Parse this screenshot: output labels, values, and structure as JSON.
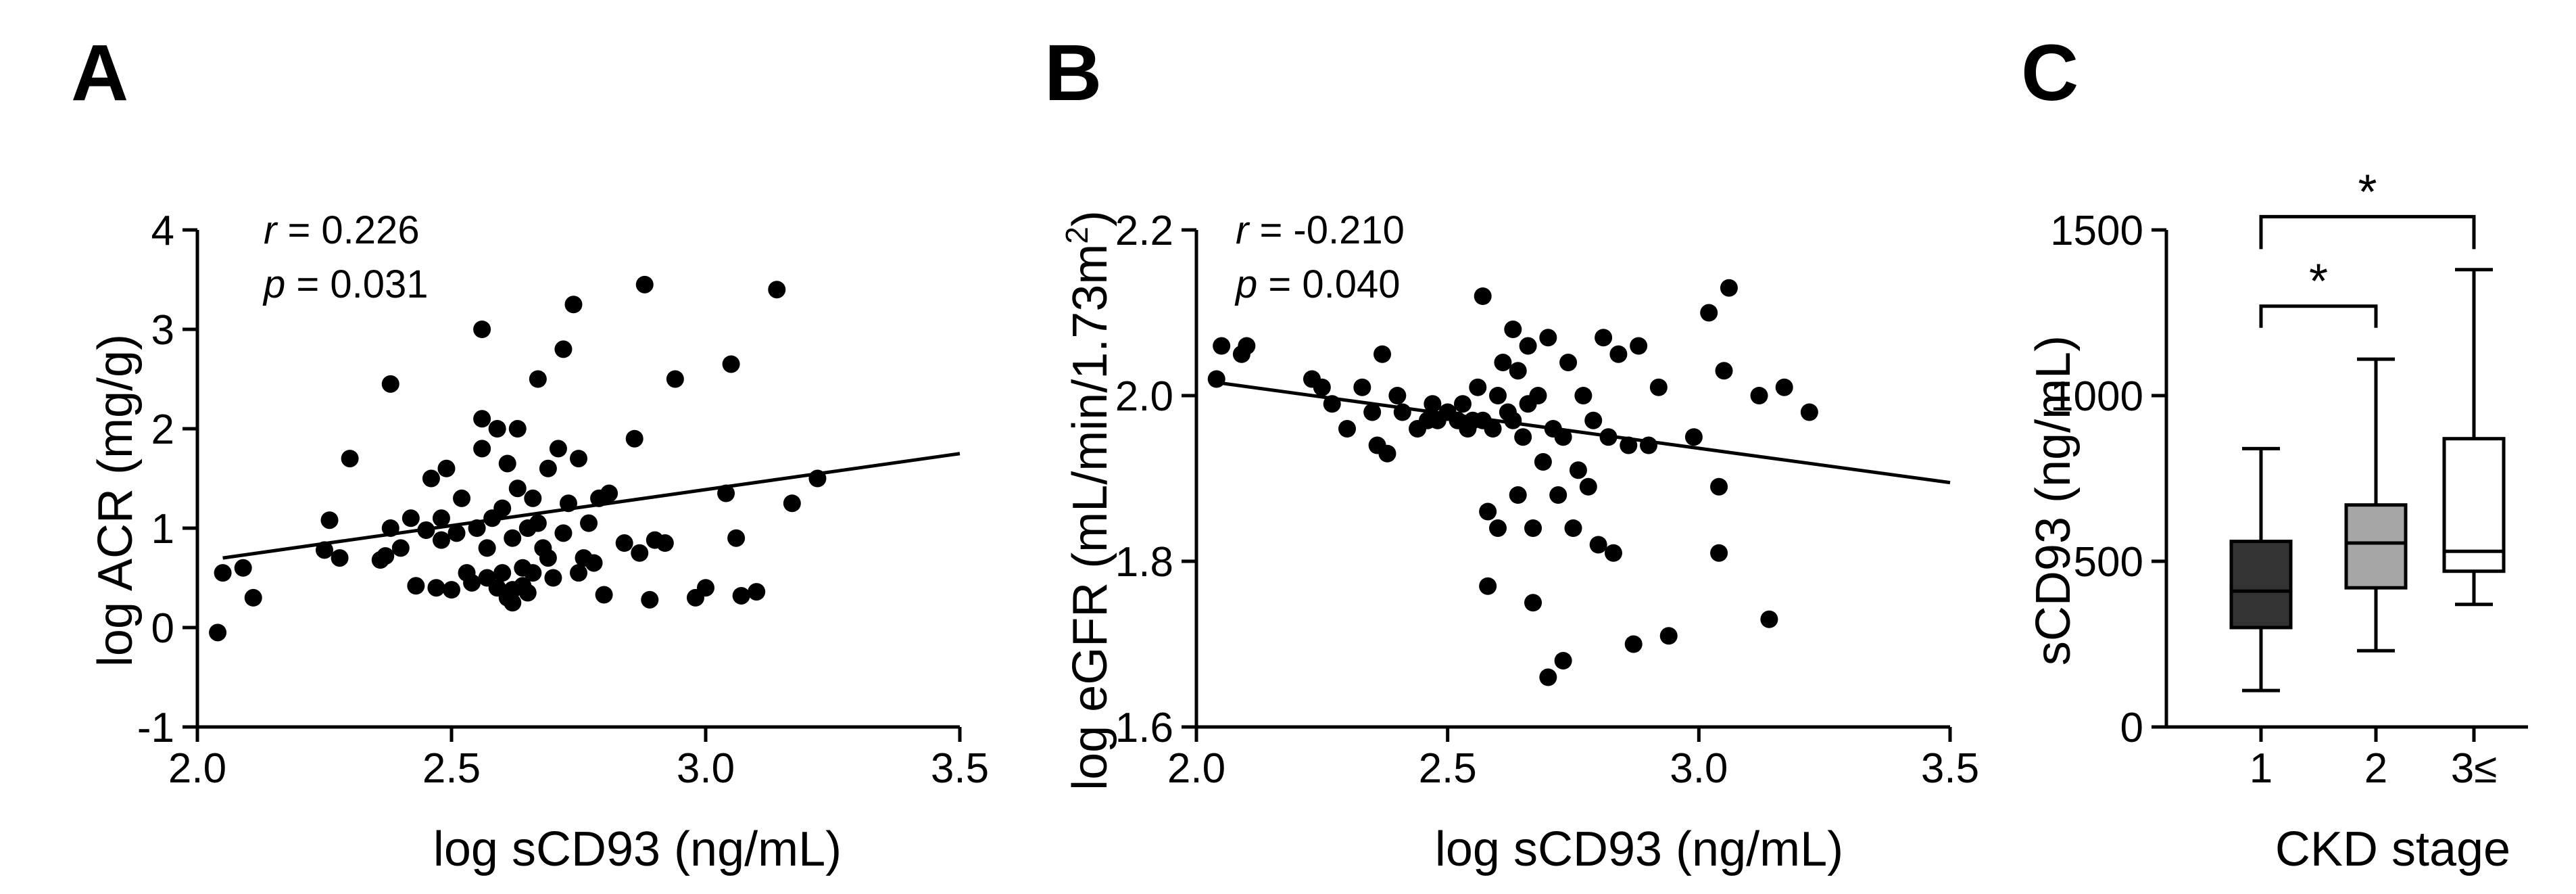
{
  "chart_data": [
    {
      "panel": "A",
      "type": "scatter",
      "xlabel": "log sCD93 (ng/mL)",
      "ylabel": "log ACR (mg/g)",
      "xlim": [
        2.0,
        3.5
      ],
      "ylim": [
        -1,
        4
      ],
      "xticks": [
        2.0,
        2.5,
        3.0,
        3.5
      ],
      "xtick_labels": [
        "2.0",
        "2.5",
        "3.0",
        "3.5"
      ],
      "yticks": [
        -1,
        0,
        1,
        2,
        3,
        4
      ],
      "ytick_labels": [
        "-1",
        "0",
        "1",
        "2",
        "3",
        "4"
      ],
      "stats": {
        "r_symbol": "r",
        "r_value": " = 0.226",
        "p_symbol": "p",
        "p_value": " = 0.031"
      },
      "fit_line": {
        "x": [
          2.05,
          3.5
        ],
        "y": [
          0.7,
          1.75
        ]
      },
      "points": [
        [
          2.04,
          -0.05
        ],
        [
          2.05,
          0.55
        ],
        [
          2.09,
          0.6
        ],
        [
          2.11,
          0.3
        ],
        [
          2.25,
          0.78
        ],
        [
          2.26,
          1.08
        ],
        [
          2.28,
          0.7
        ],
        [
          2.3,
          1.7
        ],
        [
          2.36,
          0.68
        ],
        [
          2.37,
          0.72
        ],
        [
          2.38,
          1.0
        ],
        [
          2.38,
          2.45
        ],
        [
          2.4,
          0.8
        ],
        [
          2.42,
          1.1
        ],
        [
          2.43,
          0.42
        ],
        [
          2.45,
          0.98
        ],
        [
          2.46,
          1.5
        ],
        [
          2.47,
          0.4
        ],
        [
          2.48,
          0.88
        ],
        [
          2.48,
          1.1
        ],
        [
          2.49,
          1.6
        ],
        [
          2.5,
          0.38
        ],
        [
          2.51,
          0.95
        ],
        [
          2.52,
          1.3
        ],
        [
          2.53,
          0.55
        ],
        [
          2.54,
          0.45
        ],
        [
          2.55,
          1.0
        ],
        [
          2.56,
          2.1
        ],
        [
          2.56,
          1.8
        ],
        [
          2.56,
          3.0
        ],
        [
          2.57,
          0.5
        ],
        [
          2.57,
          0.8
        ],
        [
          2.58,
          1.1
        ],
        [
          2.59,
          0.4
        ],
        [
          2.59,
          2.0
        ],
        [
          2.6,
          0.55
        ],
        [
          2.6,
          1.2
        ],
        [
          2.61,
          0.3
        ],
        [
          2.61,
          1.65
        ],
        [
          2.62,
          0.38
        ],
        [
          2.62,
          0.25
        ],
        [
          2.62,
          0.9
        ],
        [
          2.63,
          2.0
        ],
        [
          2.63,
          1.4
        ],
        [
          2.64,
          0.6
        ],
        [
          2.64,
          0.42
        ],
        [
          2.65,
          1.0
        ],
        [
          2.65,
          0.35
        ],
        [
          2.66,
          1.3
        ],
        [
          2.66,
          0.55
        ],
        [
          2.67,
          1.05
        ],
        [
          2.67,
          2.5
        ],
        [
          2.68,
          0.8
        ],
        [
          2.69,
          1.6
        ],
        [
          2.69,
          0.7
        ],
        [
          2.7,
          0.5
        ],
        [
          2.71,
          1.8
        ],
        [
          2.72,
          2.8
        ],
        [
          2.72,
          0.95
        ],
        [
          2.73,
          1.25
        ],
        [
          2.74,
          3.25
        ],
        [
          2.75,
          1.7
        ],
        [
          2.75,
          0.55
        ],
        [
          2.76,
          0.7
        ],
        [
          2.77,
          1.05
        ],
        [
          2.78,
          0.65
        ],
        [
          2.79,
          1.3
        ],
        [
          2.8,
          0.33
        ],
        [
          2.81,
          1.35
        ],
        [
          2.84,
          0.85
        ],
        [
          2.86,
          1.9
        ],
        [
          2.87,
          0.75
        ],
        [
          2.88,
          3.45
        ],
        [
          2.89,
          0.28
        ],
        [
          2.9,
          0.88
        ],
        [
          2.92,
          0.85
        ],
        [
          2.94,
          2.5
        ],
        [
          2.98,
          0.3
        ],
        [
          3.0,
          0.4
        ],
        [
          3.04,
          1.35
        ],
        [
          3.05,
          2.65
        ],
        [
          3.06,
          0.9
        ],
        [
          3.07,
          0.32
        ],
        [
          3.1,
          0.36
        ],
        [
          3.14,
          3.4
        ],
        [
          3.17,
          1.25
        ],
        [
          3.22,
          1.5
        ]
      ]
    },
    {
      "panel": "B",
      "type": "scatter",
      "xlabel": "log sCD93 (ng/mL)",
      "ylabel_parts": [
        "log eGFR (mL/min/1.73m",
        "2",
        ")"
      ],
      "xlim": [
        2.0,
        3.5
      ],
      "ylim": [
        1.6,
        2.2
      ],
      "xticks": [
        2.0,
        2.5,
        3.0,
        3.5
      ],
      "xtick_labels": [
        "2.0",
        "2.5",
        "3.0",
        "3.5"
      ],
      "yticks": [
        1.6,
        1.8,
        2.0,
        2.2
      ],
      "ytick_labels": [
        "1.6",
        "1.8",
        "2.0",
        "2.2"
      ],
      "stats": {
        "r_symbol": "r",
        "r_value": " = -0.210",
        "p_symbol": "p",
        "p_value": " = 0.040"
      },
      "fit_line": {
        "x": [
          2.05,
          3.5
        ],
        "y": [
          2.015,
          1.895
        ]
      },
      "points": [
        [
          2.04,
          2.02
        ],
        [
          2.05,
          2.06
        ],
        [
          2.09,
          2.05
        ],
        [
          2.1,
          2.06
        ],
        [
          2.23,
          2.02
        ],
        [
          2.25,
          2.01
        ],
        [
          2.27,
          1.99
        ],
        [
          2.3,
          1.96
        ],
        [
          2.33,
          2.01
        ],
        [
          2.35,
          1.98
        ],
        [
          2.36,
          1.94
        ],
        [
          2.37,
          2.05
        ],
        [
          2.38,
          1.93
        ],
        [
          2.4,
          2.0
        ],
        [
          2.41,
          1.98
        ],
        [
          2.44,
          1.96
        ],
        [
          2.46,
          1.97
        ],
        [
          2.47,
          1.99
        ],
        [
          2.48,
          1.97
        ],
        [
          2.5,
          1.98
        ],
        [
          2.52,
          1.97
        ],
        [
          2.53,
          1.99
        ],
        [
          2.54,
          1.96
        ],
        [
          2.55,
          1.97
        ],
        [
          2.56,
          2.01
        ],
        [
          2.57,
          2.12
        ],
        [
          2.57,
          1.97
        ],
        [
          2.58,
          1.86
        ],
        [
          2.58,
          1.77
        ],
        [
          2.59,
          1.96
        ],
        [
          2.6,
          1.84
        ],
        [
          2.6,
          2.0
        ],
        [
          2.61,
          2.04
        ],
        [
          2.62,
          1.98
        ],
        [
          2.63,
          2.08
        ],
        [
          2.63,
          1.97
        ],
        [
          2.64,
          1.88
        ],
        [
          2.64,
          2.03
        ],
        [
          2.65,
          1.95
        ],
        [
          2.66,
          1.99
        ],
        [
          2.66,
          2.06
        ],
        [
          2.67,
          1.84
        ],
        [
          2.67,
          1.75
        ],
        [
          2.68,
          2.0
        ],
        [
          2.69,
          1.92
        ],
        [
          2.7,
          1.66
        ],
        [
          2.7,
          2.07
        ],
        [
          2.71,
          1.96
        ],
        [
          2.72,
          1.88
        ],
        [
          2.73,
          1.68
        ],
        [
          2.73,
          1.95
        ],
        [
          2.74,
          2.04
        ],
        [
          2.75,
          1.84
        ],
        [
          2.76,
          1.91
        ],
        [
          2.77,
          2.0
        ],
        [
          2.78,
          1.89
        ],
        [
          2.79,
          1.97
        ],
        [
          2.8,
          1.82
        ],
        [
          2.81,
          2.07
        ],
        [
          2.82,
          1.95
        ],
        [
          2.83,
          1.81
        ],
        [
          2.84,
          2.05
        ],
        [
          2.86,
          1.94
        ],
        [
          2.87,
          1.7
        ],
        [
          2.88,
          2.06
        ],
        [
          2.9,
          1.94
        ],
        [
          2.92,
          2.01
        ],
        [
          2.94,
          1.71
        ],
        [
          2.99,
          1.95
        ],
        [
          3.02,
          2.1
        ],
        [
          3.04,
          1.89
        ],
        [
          3.05,
          2.03
        ],
        [
          3.06,
          2.13
        ],
        [
          3.04,
          1.81
        ],
        [
          3.12,
          2.0
        ],
        [
          3.14,
          1.73
        ],
        [
          3.17,
          2.01
        ],
        [
          3.22,
          1.98
        ]
      ]
    },
    {
      "panel": "C",
      "type": "box",
      "xlabel": "CKD stage",
      "ylabel": "sCD93 (ng/mL)",
      "ylim": [
        0,
        1500
      ],
      "yticks": [
        0,
        500,
        1000,
        1500
      ],
      "ytick_labels": [
        "0",
        "500",
        "1000",
        "1500"
      ],
      "categories": [
        "1",
        "2",
        "3≤"
      ],
      "boxes": [
        {
          "category": "1",
          "whisker_low": 110,
          "q1": 300,
          "median": 410,
          "q3": 560,
          "whisker_high": 840,
          "fill": "#333333"
        },
        {
          "category": "2",
          "whisker_low": 230,
          "q1": 420,
          "median": 555,
          "q3": 670,
          "whisker_high": 1110,
          "fill": "#a6a6a6"
        },
        {
          "category": "3≤",
          "whisker_low": 370,
          "q1": 470,
          "median": 530,
          "q3": 870,
          "whisker_high": 1380,
          "fill": "#ffffff"
        }
      ],
      "significance": [
        {
          "from": "1",
          "to": "2",
          "bracket_y": 1270,
          "label": "*"
        },
        {
          "from": "1",
          "to": "3≤",
          "bracket_y": 1540,
          "label": "*"
        }
      ]
    }
  ]
}
